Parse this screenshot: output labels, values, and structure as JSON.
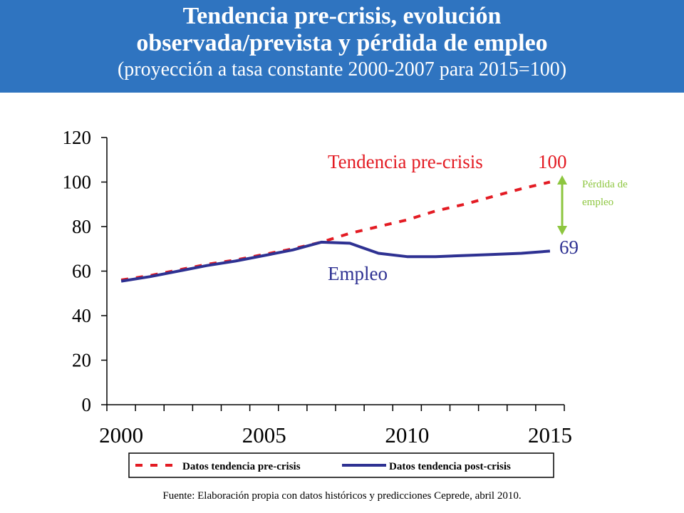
{
  "header": {
    "title_line1": "Tendencia pre-crisis, evolución",
    "title_line2": "observada/prevista y pérdida de empleo",
    "subtitle": "(proyección a tasa constante 2000-2007 para 2015=100)"
  },
  "colors": {
    "banner": "#2f74c0",
    "pre_crisis": "#e31b23",
    "post_crisis": "#2e3192",
    "loss_arrow": "#8dc63f"
  },
  "chart_data": {
    "type": "line",
    "title": "",
    "xlabel": "",
    "ylabel": "",
    "xlim": [
      1999.5,
      2015.5
    ],
    "ylim": [
      0,
      120
    ],
    "yticks": [
      0,
      20,
      40,
      60,
      80,
      100,
      120
    ],
    "xtick_labels": [
      2000,
      2005,
      2010,
      2015
    ],
    "grid": false,
    "legend_position": "bottom",
    "series": [
      {
        "name": "Datos tendencia pre-crisis",
        "style": "dashed",
        "x": [
          2000,
          2001,
          2002,
          2003,
          2004,
          2005,
          2006,
          2007,
          2008,
          2009,
          2010,
          2011,
          2012,
          2013,
          2014,
          2015
        ],
        "y": [
          56,
          58,
          60.5,
          63,
          65,
          67.5,
          70,
          73,
          77,
          80,
          83,
          87,
          90,
          93.5,
          97,
          100
        ]
      },
      {
        "name": "Datos tendencia post-crisis",
        "style": "solid",
        "x": [
          2000,
          2001,
          2002,
          2003,
          2004,
          2005,
          2006,
          2007,
          2008,
          2009,
          2010,
          2011,
          2012,
          2013,
          2014,
          2015
        ],
        "y": [
          55.5,
          57.5,
          60,
          62.5,
          64.5,
          67,
          69.5,
          73,
          72.5,
          68,
          66.5,
          66.5,
          67,
          67.5,
          68,
          69
        ]
      }
    ],
    "annotations": {
      "pre_crisis_label": "Tendencia pre-crisis",
      "pre_crisis_end_value": "100",
      "post_crisis_label": "Empleo",
      "post_crisis_end_value": "69",
      "loss_label_line1": "Pérdida de",
      "loss_label_line2": "empleo"
    }
  },
  "source": "Fuente: Elaboración propia con datos históricos y predicciones Ceprede, abril 2010."
}
